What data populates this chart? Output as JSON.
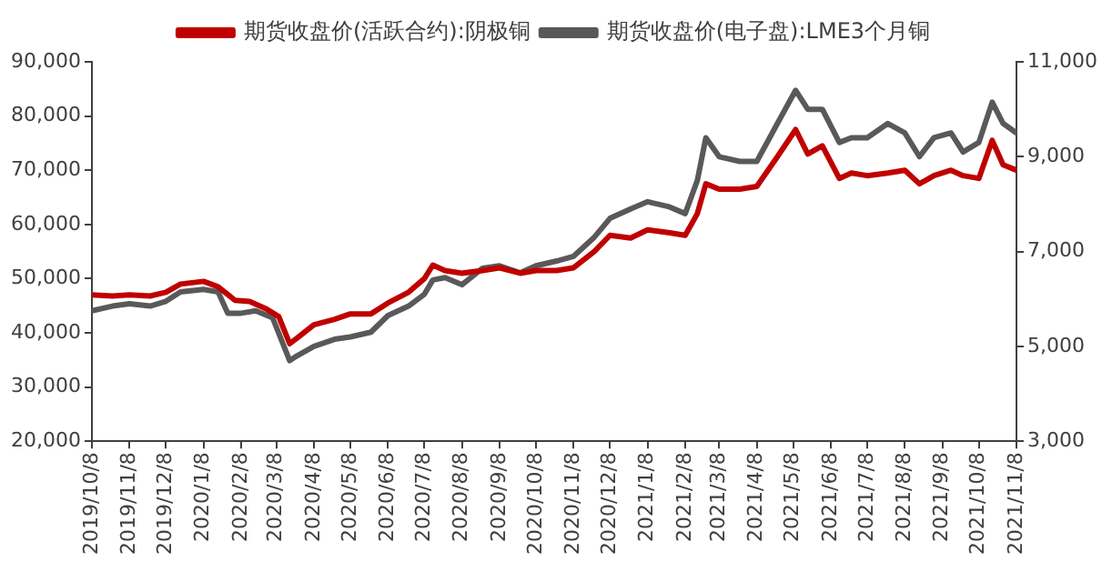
{
  "chart_data": {
    "type": "line",
    "legend": "top",
    "grid": false,
    "marker": "none",
    "line_style": "solid",
    "xlim": [
      "2019-10-08",
      "2021-11-08"
    ],
    "xticks": [
      {
        "value": "2019-10-08",
        "label": "2019/10/8"
      },
      {
        "value": "2019-11-08",
        "label": "2019/11/8"
      },
      {
        "value": "2019-12-08",
        "label": "2019/12/8"
      },
      {
        "value": "2020-01-08",
        "label": "2020/1/8"
      },
      {
        "value": "2020-02-08",
        "label": "2020/2/8"
      },
      {
        "value": "2020-03-08",
        "label": "2020/3/8"
      },
      {
        "value": "2020-04-08",
        "label": "2020/4/8"
      },
      {
        "value": "2020-05-08",
        "label": "2020/5/8"
      },
      {
        "value": "2020-06-08",
        "label": "2020/6/8"
      },
      {
        "value": "2020-07-08",
        "label": "2020/7/8"
      },
      {
        "value": "2020-08-08",
        "label": "2020/8/8"
      },
      {
        "value": "2020-09-08",
        "label": "2020/9/8"
      },
      {
        "value": "2020-10-08",
        "label": "2020/10/8"
      },
      {
        "value": "2020-11-08",
        "label": "2020/11/8"
      },
      {
        "value": "2020-12-08",
        "label": "2020/12/8"
      },
      {
        "value": "2021-01-08",
        "label": "2021/1/8"
      },
      {
        "value": "2021-02-08",
        "label": "2021/2/8"
      },
      {
        "value": "2021-03-08",
        "label": "2021/3/8"
      },
      {
        "value": "2021-04-08",
        "label": "2021/4/8"
      },
      {
        "value": "2021-05-08",
        "label": "2021/5/8"
      },
      {
        "value": "2021-06-08",
        "label": "2021/6/8"
      },
      {
        "value": "2021-07-08",
        "label": "2021/7/8"
      },
      {
        "value": "2021-08-08",
        "label": "2021/8/8"
      },
      {
        "value": "2021-09-08",
        "label": "2021/9/8"
      },
      {
        "value": "2021-10-08",
        "label": "2021/10/8"
      },
      {
        "value": "2021-11-08",
        "label": "2021/11/8"
      }
    ],
    "ylim": [
      20000,
      90000
    ],
    "yticks": [
      {
        "value": 20000,
        "label": "20,000"
      },
      {
        "value": 30000,
        "label": "30,000"
      },
      {
        "value": 40000,
        "label": "40,000"
      },
      {
        "value": 50000,
        "label": "50,000"
      },
      {
        "value": 60000,
        "label": "60,000"
      },
      {
        "value": 70000,
        "label": "70,000"
      },
      {
        "value": 80000,
        "label": "80,000"
      },
      {
        "value": 90000,
        "label": "90,000"
      }
    ],
    "y2lim": [
      3000,
      11000
    ],
    "y2ticks": [
      {
        "value": 3000,
        "label": "3,000"
      },
      {
        "value": 5000,
        "label": "5,000"
      },
      {
        "value": 7000,
        "label": "7,000"
      },
      {
        "value": 9000,
        "label": "9,000"
      },
      {
        "value": 11000,
        "label": "11,000"
      }
    ],
    "x": [
      "2019-10-08",
      "2019-10-25",
      "2019-11-08",
      "2019-11-25",
      "2019-12-08",
      "2019-12-20",
      "2020-01-08",
      "2020-01-20",
      "2020-02-03",
      "2020-02-15",
      "2020-02-28",
      "2020-03-10",
      "2020-03-19",
      "2020-03-25",
      "2020-04-08",
      "2020-04-25",
      "2020-05-08",
      "2020-05-25",
      "2020-06-08",
      "2020-06-25",
      "2020-07-08",
      "2020-07-15",
      "2020-07-25",
      "2020-08-08",
      "2020-08-25",
      "2020-09-08",
      "2020-09-25",
      "2020-10-08",
      "2020-10-25",
      "2020-11-08",
      "2020-11-25",
      "2020-12-08",
      "2020-12-25",
      "2021-01-08",
      "2021-01-25",
      "2021-02-08",
      "2021-02-18",
      "2021-02-25",
      "2021-03-08",
      "2021-03-25",
      "2021-04-08",
      "2021-04-25",
      "2021-05-10",
      "2021-05-20",
      "2021-06-01",
      "2021-06-15",
      "2021-06-25",
      "2021-07-08",
      "2021-07-25",
      "2021-08-08",
      "2021-08-20",
      "2021-09-01",
      "2021-09-15",
      "2021-09-25",
      "2021-10-08",
      "2021-10-19",
      "2021-10-28",
      "2021-11-08"
    ],
    "series": [
      {
        "name": "期货收盘价(活跃合约):阴极铜",
        "color": "#c00000",
        "values": [
          47000,
          46800,
          47000,
          46800,
          47500,
          49000,
          49500,
          48500,
          46000,
          45800,
          44500,
          43000,
          38000,
          39000,
          41500,
          42500,
          43500,
          43500,
          45500,
          47500,
          50000,
          52500,
          51500,
          51000,
          51500,
          52000,
          51000,
          51500,
          51500,
          52000,
          55000,
          58000,
          57500,
          59000,
          58500,
          58000,
          62000,
          67500,
          66500,
          66500,
          67000,
          72500,
          77500,
          73000,
          74500,
          68500,
          69500,
          69000,
          69500,
          70000,
          67500,
          69000,
          70000,
          69000,
          68500,
          75500,
          71000,
          70000
        ]
      },
      {
        "name": "期货收盘价(电子盘):LME3个月铜",
        "color": "#595959",
        "axis": "y2",
        "x": [
          "2019-10-08",
          "2019-10-25",
          "2019-11-08",
          "2019-11-25",
          "2019-12-08",
          "2019-12-20",
          "2020-01-08",
          "2020-01-20",
          "2020-01-28",
          "2020-02-08",
          "2020-02-20",
          "2020-03-05",
          "2020-03-19",
          "2020-03-25",
          "2020-04-08",
          "2020-04-25",
          "2020-05-08",
          "2020-05-25",
          "2020-06-08",
          "2020-06-25",
          "2020-07-08",
          "2020-07-15",
          "2020-07-25",
          "2020-08-08",
          "2020-08-25",
          "2020-09-08",
          "2020-09-25",
          "2020-10-08",
          "2020-10-25",
          "2020-11-08",
          "2020-11-25",
          "2020-12-08",
          "2020-12-25",
          "2021-01-08",
          "2021-01-25",
          "2021-02-08",
          "2021-02-18",
          "2021-02-25",
          "2021-03-08",
          "2021-03-25",
          "2021-04-08",
          "2021-04-25",
          "2021-05-10",
          "2021-05-20",
          "2021-06-01",
          "2021-06-15",
          "2021-06-25",
          "2021-07-08",
          "2021-07-25",
          "2021-08-08",
          "2021-08-20",
          "2021-09-01",
          "2021-09-15",
          "2021-09-25",
          "2021-10-08",
          "2021-10-19",
          "2021-10-28",
          "2021-11-08"
        ],
        "values": [
          5750,
          5850,
          5900,
          5850,
          5950,
          6150,
          6200,
          6150,
          5700,
          5700,
          5750,
          5600,
          4700,
          4800,
          5000,
          5150,
          5200,
          5300,
          5650,
          5850,
          6100,
          6400,
          6450,
          6300,
          6650,
          6700,
          6550,
          6700,
          6800,
          6900,
          7300,
          7700,
          7900,
          8050,
          7950,
          7800,
          8500,
          9400,
          9000,
          8900,
          8900,
          9700,
          10400,
          10000,
          10000,
          9300,
          9400,
          9400,
          9700,
          9500,
          9000,
          9400,
          9500,
          9100,
          9300,
          10150,
          9700,
          9500
        ]
      }
    ]
  }
}
